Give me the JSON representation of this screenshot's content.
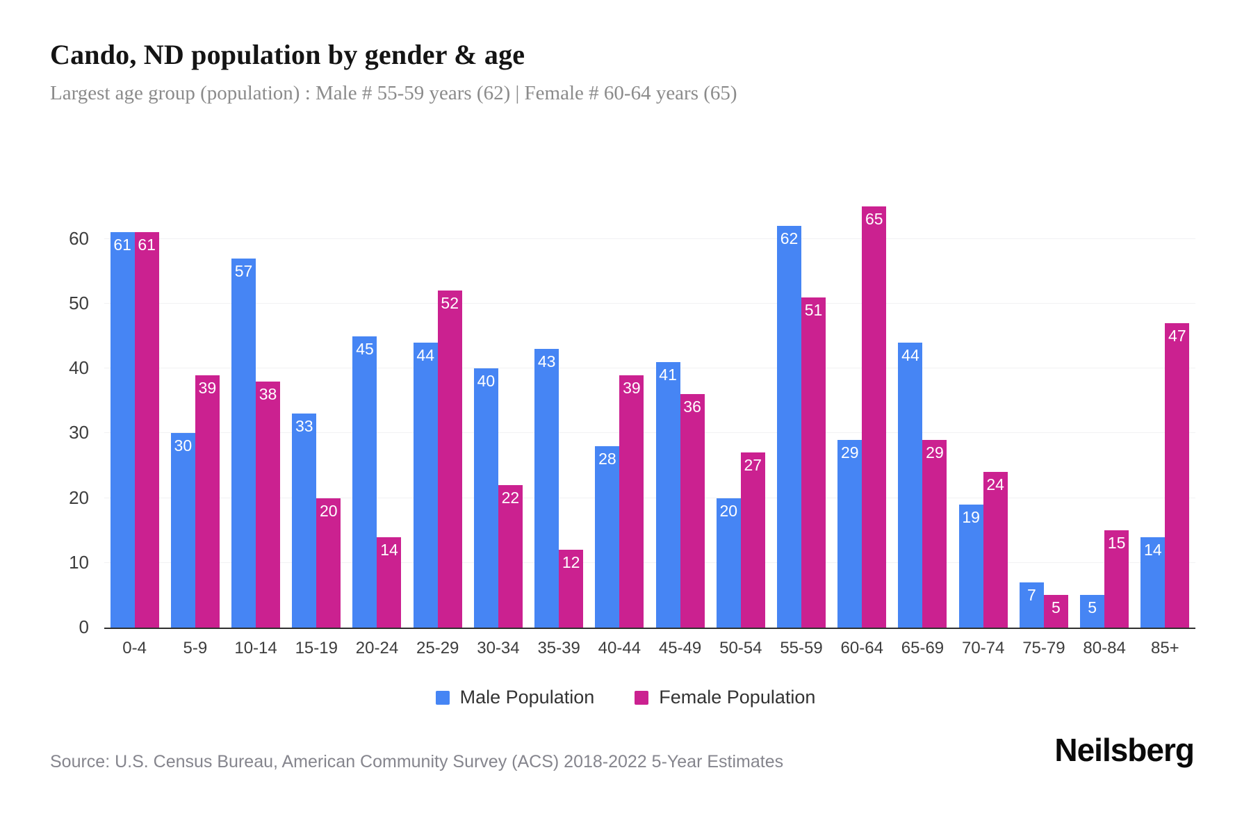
{
  "header": {
    "title": "Cando, ND population by gender & age",
    "subtitle": "Largest age group (population) : Male # 55-59 years (62) | Female # 60-64 years (65)"
  },
  "chart_data": {
    "type": "bar",
    "title": "Cando, ND population by gender & age",
    "categories": [
      "0-4",
      "5-9",
      "10-14",
      "15-19",
      "20-24",
      "25-29",
      "30-34",
      "35-39",
      "40-44",
      "45-49",
      "50-54",
      "55-59",
      "60-64",
      "65-69",
      "70-74",
      "75-79",
      "80-84",
      "85+"
    ],
    "series": [
      {
        "name": "Male Population",
        "color": "#4685F4",
        "values": [
          61,
          30,
          57,
          33,
          45,
          44,
          40,
          43,
          28,
          41,
          20,
          62,
          29,
          44,
          19,
          7,
          5,
          14
        ]
      },
      {
        "name": "Female Population",
        "color": "#CB2190",
        "values": [
          61,
          39,
          38,
          20,
          14,
          52,
          22,
          12,
          39,
          36,
          27,
          51,
          65,
          29,
          24,
          5,
          15,
          47
        ]
      }
    ],
    "xlabel": "",
    "ylabel": "",
    "y_ticks": [
      0,
      10,
      20,
      30,
      40,
      50,
      60
    ],
    "ylim": [
      0,
      68
    ],
    "grid": "horizontal",
    "legend_position": "bottom",
    "value_labels": "inside-top-white"
  },
  "footer": {
    "source": "Source: U.S. Census Bureau, American Community Survey (ACS) 2018-2022 5-Year Estimates",
    "logo": "Neilsberg"
  }
}
